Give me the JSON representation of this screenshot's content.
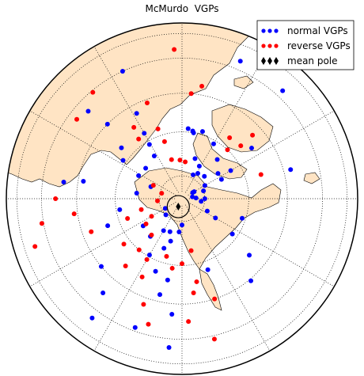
{
  "chart_data": {
    "type": "scatter",
    "title": "McMurdo  VGPs",
    "xlabel": "",
    "ylabel": "",
    "projection": "orthographic, north pole view",
    "grid": true,
    "legend_position": "top-right",
    "legend": [
      {
        "label": "normal VGPs",
        "marker": "circle",
        "color": "#0000ff"
      },
      {
        "label": "reverse VGPs",
        "marker": "circle",
        "color": "#ff0000"
      },
      {
        "label": "mean pole",
        "marker": "diamond",
        "color": "#000000"
      }
    ],
    "colors": {
      "land": "#ffe4c4",
      "coast": "#000000",
      "grid": "#000000",
      "ocean": "#ffffff"
    },
    "series": [
      {
        "name": "normal VGPs",
        "color": "#0000ff",
        "points": [
          [
            -25,
            0.8
          ],
          [
            43,
            0.84
          ],
          [
            23,
            0.85
          ],
          [
            54,
            0.49
          ],
          [
            75,
            0.64
          ],
          [
            60,
            0.32
          ],
          [
            64,
            0.25
          ],
          [
            55,
            0.25
          ],
          [
            42,
            0.3
          ],
          [
            30,
            0.36
          ],
          [
            17,
            0.4
          ],
          [
            10,
            0.38
          ],
          [
            5,
            0.4
          ],
          [
            9,
            0.39
          ],
          [
            18,
            0.24
          ],
          [
            28,
            0.21
          ],
          [
            32,
            0.17
          ],
          [
            25,
            0.15
          ],
          [
            45,
            0.18
          ],
          [
            60,
            0.15
          ],
          [
            70,
            0.13
          ],
          [
            87,
            0.08
          ],
          [
            98,
            0.11
          ],
          [
            60,
            0.07
          ],
          [
            80,
            0.06
          ],
          [
            116,
            0.16
          ],
          [
            120,
            0.22
          ],
          [
            108,
            0.36
          ],
          [
            -33,
            0.29
          ],
          [
            -31,
            0.36
          ],
          [
            -30,
            0.43
          ],
          [
            -28,
            0.55
          ],
          [
            -45,
            0.6
          ],
          [
            -47,
            0.73
          ],
          [
            -50,
            0.45
          ],
          [
            -57,
            0.4
          ],
          [
            -82,
            0.68
          ],
          [
            -80,
            0.57
          ],
          [
            -62,
            0.28
          ],
          [
            -50,
            0.27
          ],
          [
            -69,
            0.19
          ],
          [
            -83,
            0.26
          ],
          [
            -100,
            0.36
          ],
          [
            -110,
            0.45
          ],
          [
            -130,
            0.6
          ],
          [
            -140,
            0.7
          ],
          [
            -143,
            0.85
          ],
          [
            -160,
            0.78
          ],
          [
            -175,
            0.85
          ],
          [
            -175,
            0.66
          ],
          [
            -167,
            0.56
          ],
          [
            -160,
            0.44
          ],
          [
            -150,
            0.37
          ],
          [
            -160,
            0.3
          ],
          [
            -150,
            0.21
          ],
          [
            -160,
            0.2
          ],
          [
            -165,
            0.25
          ],
          [
            -175,
            0.19
          ],
          [
            -180,
            0.15
          ],
          [
            -120,
            0.11
          ],
          [
            -135,
            0.13
          ],
          [
            -170,
            0.47
          ],
          [
            160,
            0.43
          ],
          [
            140,
            0.61
          ],
          [
            130,
            0.5
          ],
          [
            125,
            0.35
          ],
          [
            90,
            0.13
          ],
          [
            60,
            0.08
          ],
          [
            -125,
            0.27
          ],
          [
            -140,
            0.28
          ]
        ]
      },
      {
        "name": "reverse VGPs",
        "color": "#ff0000",
        "points": [
          [
            -3,
            0.85
          ],
          [
            -40,
            0.79
          ],
          [
            -53,
            0.75
          ],
          [
            -34,
            0.49
          ],
          [
            -36,
            0.42
          ],
          [
            -15,
            0.23
          ],
          [
            -3,
            0.22
          ],
          [
            5,
            0.21
          ],
          [
            -17,
            0.34
          ],
          [
            -19,
            0.42
          ],
          [
            -20,
            0.58
          ],
          [
            5,
            0.6
          ],
          [
            10,
            0.65
          ],
          [
            43,
            0.38
          ],
          [
            48,
            0.45
          ],
          [
            38,
            0.44
          ],
          [
            48,
            0.54
          ],
          [
            73,
            0.47
          ],
          [
            -65,
            0.18
          ],
          [
            -75,
            0.12
          ],
          [
            -95,
            0.14
          ],
          [
            -120,
            0.2
          ],
          [
            -125,
            0.25
          ],
          [
            -140,
            0.27
          ],
          [
            -150,
            0.4
          ],
          [
            -153,
            0.5
          ],
          [
            -165,
            0.34
          ],
          [
            -172,
            0.4
          ],
          [
            -180,
            0.37
          ],
          [
            -187,
            0.54
          ],
          [
            -183,
            0.7
          ],
          [
            -193,
            0.82
          ],
          [
            -190,
            0.48
          ],
          [
            -198,
            0.6
          ],
          [
            -140,
            0.5
          ],
          [
            -128,
            0.42
          ],
          [
            -110,
            0.55
          ],
          [
            -98,
            0.62
          ],
          [
            -90,
            0.72
          ],
          [
            -100,
            0.81
          ],
          [
            -108,
            0.88
          ],
          [
            -105,
            0.24
          ],
          [
            -110,
            0.33
          ],
          [
            -140,
            0.38
          ],
          [
            -165,
            0.74
          ],
          [
            -190,
            0.3
          ],
          [
            -160,
            0.64
          ]
        ]
      },
      {
        "name": "mean pole",
        "color": "#000000",
        "marker": "diamond",
        "points": [
          [
            -155,
            0.05
          ]
        ]
      }
    ]
  }
}
